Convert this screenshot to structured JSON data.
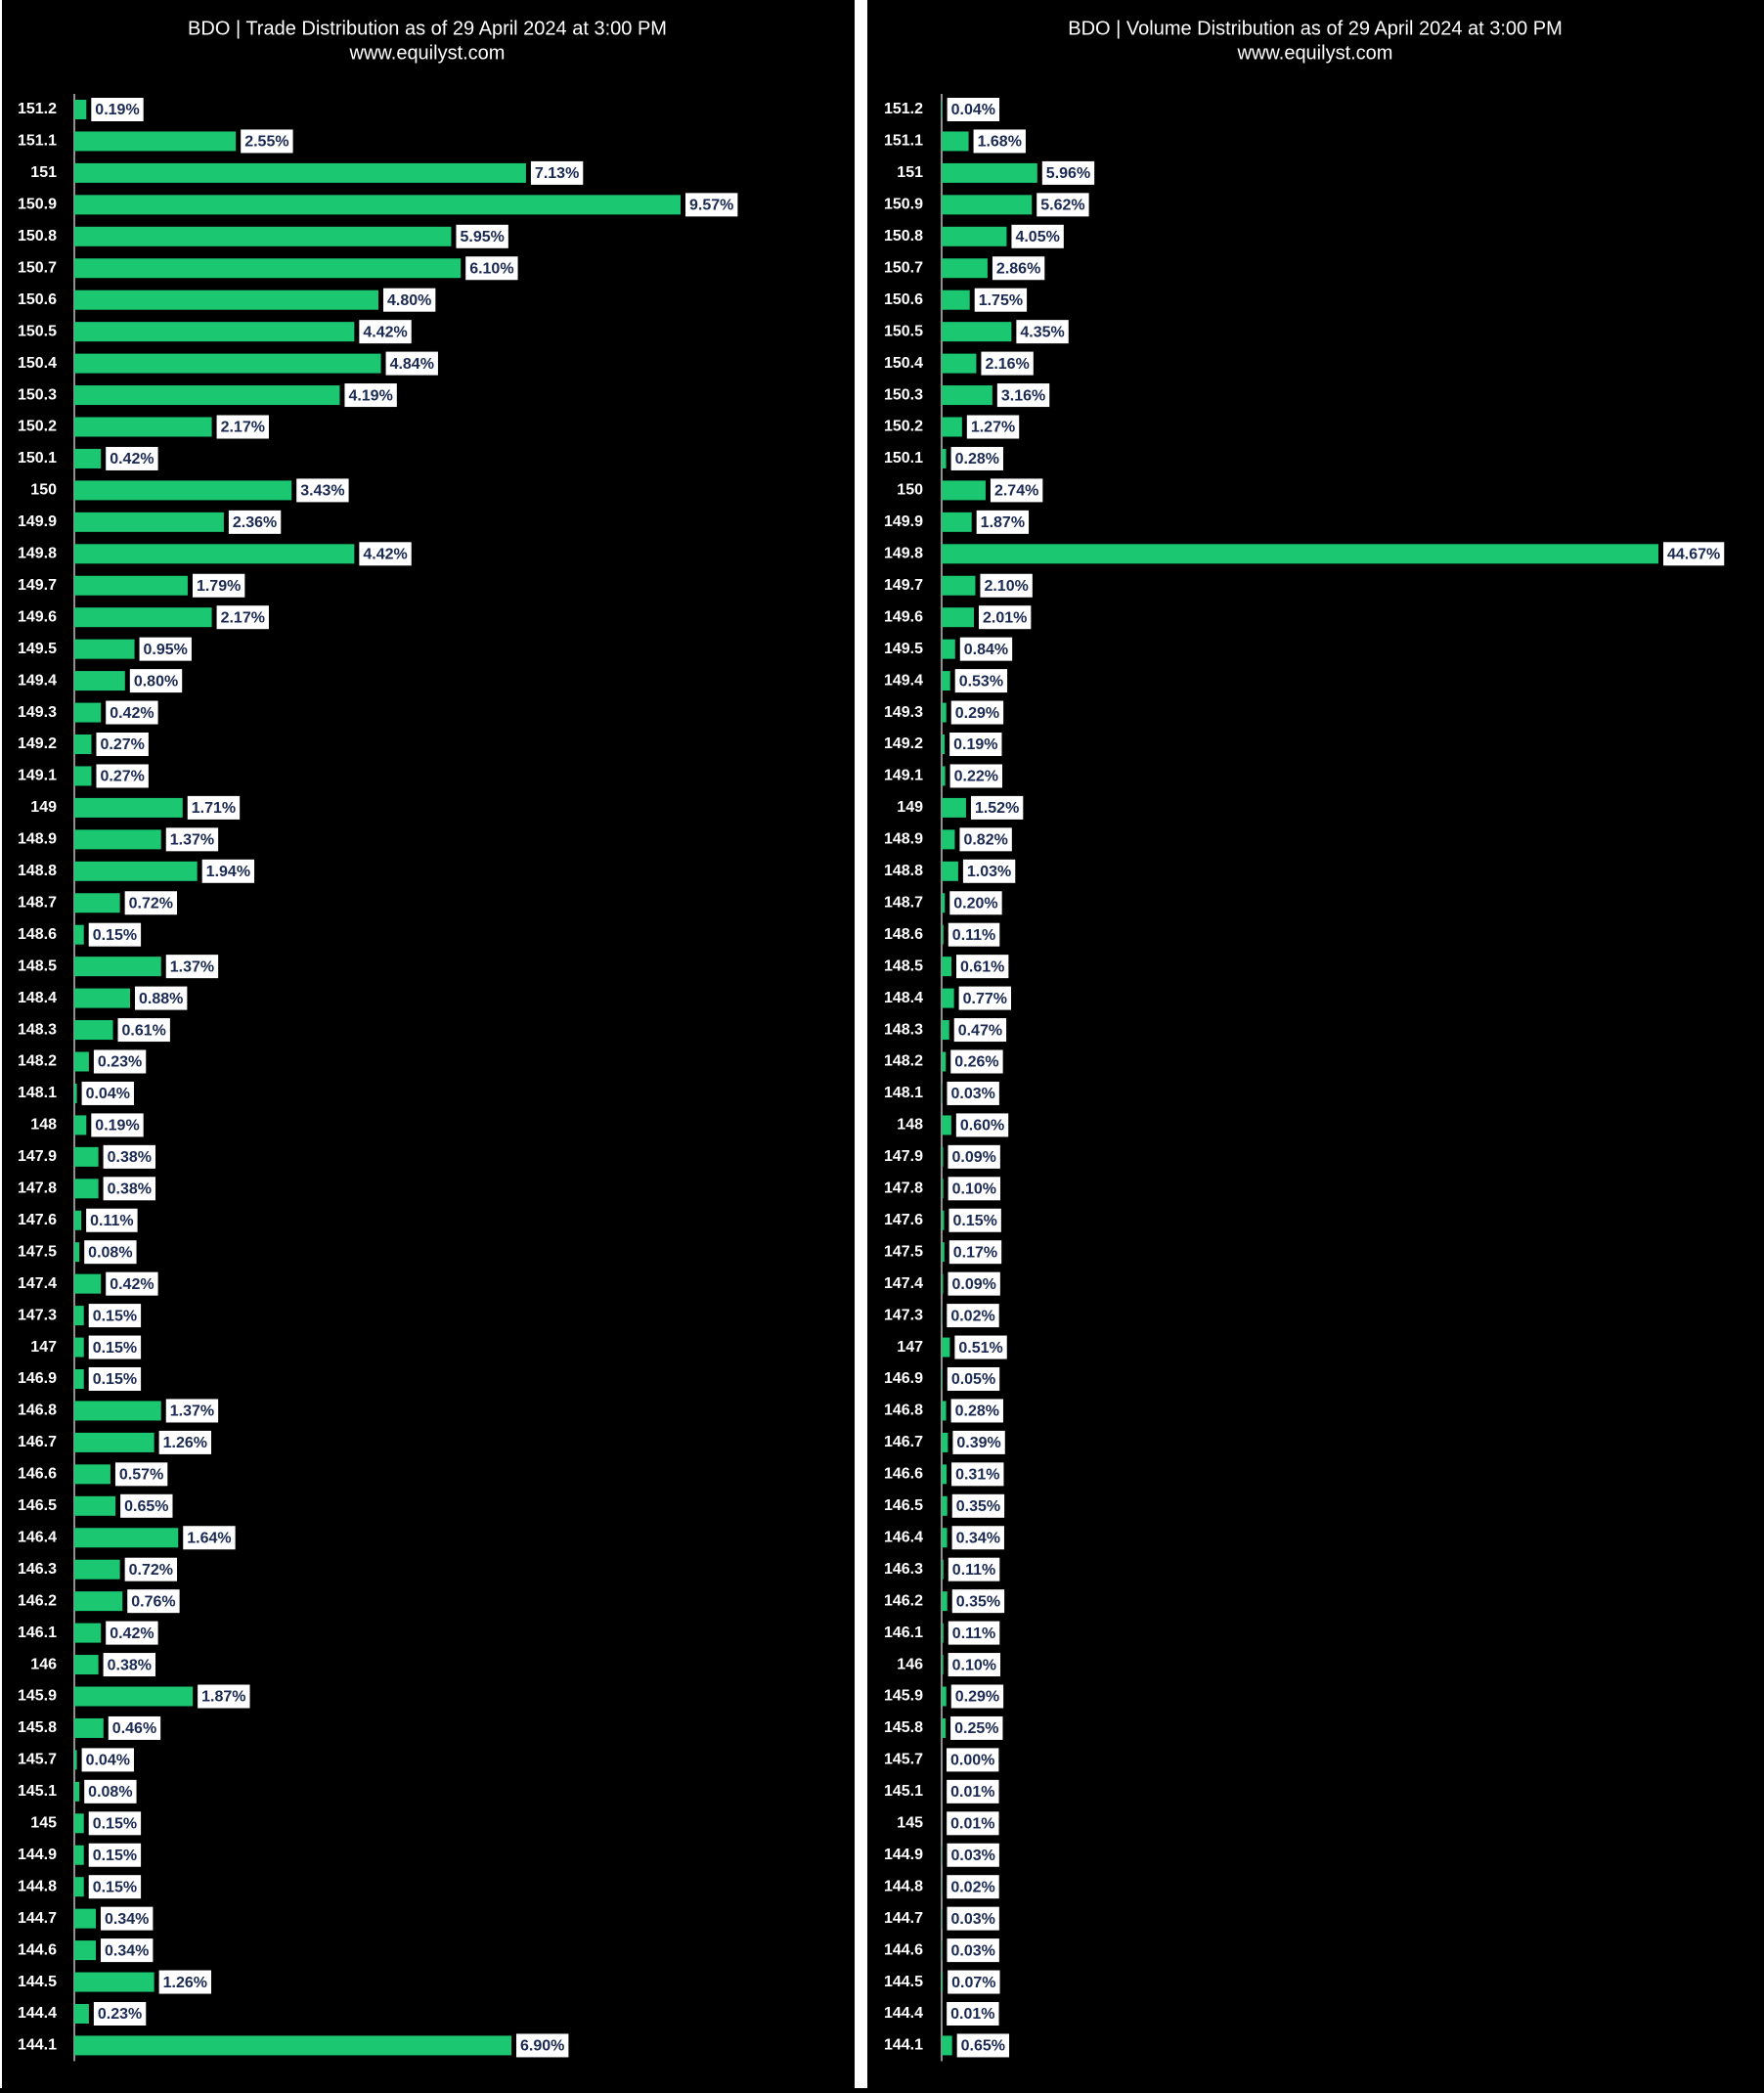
{
  "chart_data": [
    {
      "type": "bar",
      "orientation": "horizontal",
      "title": "BDO | Trade Distribution as of 29 April 2024 at 3:00 PM",
      "subtitle": "www.equilyst.com",
      "color": "#1cc772",
      "categories": [
        "151.2",
        "151.1",
        "151",
        "150.9",
        "150.8",
        "150.7",
        "150.6",
        "150.5",
        "150.4",
        "150.3",
        "150.2",
        "150.1",
        "150",
        "149.9",
        "149.8",
        "149.7",
        "149.6",
        "149.5",
        "149.4",
        "149.3",
        "149.2",
        "149.1",
        "149",
        "148.9",
        "148.8",
        "148.7",
        "148.6",
        "148.5",
        "148.4",
        "148.3",
        "148.2",
        "148.1",
        "148",
        "147.9",
        "147.8",
        "147.6",
        "147.5",
        "147.4",
        "147.3",
        "147",
        "146.9",
        "146.8",
        "146.7",
        "146.6",
        "146.5",
        "146.4",
        "146.3",
        "146.2",
        "146.1",
        "146",
        "145.9",
        "145.8",
        "145.7",
        "145.1",
        "145",
        "144.9",
        "144.8",
        "144.7",
        "144.6",
        "144.5",
        "144.4",
        "144.1"
      ],
      "values": [
        0.19,
        2.55,
        7.13,
        9.57,
        5.95,
        6.1,
        4.8,
        4.42,
        4.84,
        4.19,
        2.17,
        0.42,
        3.43,
        2.36,
        4.42,
        1.79,
        2.17,
        0.95,
        0.8,
        0.42,
        0.27,
        0.27,
        1.71,
        1.37,
        1.94,
        0.72,
        0.15,
        1.37,
        0.88,
        0.61,
        0.23,
        0.04,
        0.19,
        0.38,
        0.38,
        0.11,
        0.08,
        0.42,
        0.15,
        0.15,
        0.15,
        1.37,
        1.26,
        0.57,
        0.65,
        1.64,
        0.72,
        0.76,
        0.42,
        0.38,
        1.87,
        0.46,
        0.04,
        0.08,
        0.15,
        0.15,
        0.15,
        0.34,
        0.34,
        1.26,
        0.23,
        6.9
      ],
      "value_labels": [
        "0.19%",
        "2.55%",
        "7.13%",
        "9.57%",
        "5.95%",
        "6.10%",
        "4.80%",
        "4.42%",
        "4.84%",
        "4.19%",
        "2.17%",
        "0.42%",
        "3.43%",
        "2.36%",
        "4.42%",
        "1.79%",
        "2.17%",
        "0.95%",
        "0.80%",
        "0.42%",
        "0.27%",
        "0.27%",
        "1.71%",
        "1.37%",
        "1.94%",
        "0.72%",
        "0.15%",
        "1.37%",
        "0.88%",
        "0.61%",
        "0.23%",
        "0.04%",
        "0.19%",
        "0.38%",
        "0.38%",
        "0.11%",
        "0.08%",
        "0.42%",
        "0.15%",
        "0.15%",
        "0.15%",
        "1.37%",
        "1.26%",
        "0.57%",
        "0.65%",
        "1.64%",
        "0.72%",
        "0.76%",
        "0.42%",
        "0.38%",
        "1.87%",
        "0.46%",
        "0.04%",
        "0.08%",
        "0.15%",
        "0.15%",
        "0.15%",
        "0.34%",
        "0.34%",
        "1.26%",
        "0.23%",
        "6.90%"
      ]
    },
    {
      "type": "bar",
      "orientation": "horizontal",
      "title": "BDO | Volume Distribution as of 29 April 2024 at 3:00 PM",
      "subtitle": "www.equilyst.com",
      "color": "#1cc772",
      "categories": [
        "151.2",
        "151.1",
        "151",
        "150.9",
        "150.8",
        "150.7",
        "150.6",
        "150.5",
        "150.4",
        "150.3",
        "150.2",
        "150.1",
        "150",
        "149.9",
        "149.8",
        "149.7",
        "149.6",
        "149.5",
        "149.4",
        "149.3",
        "149.2",
        "149.1",
        "149",
        "148.9",
        "148.8",
        "148.7",
        "148.6",
        "148.5",
        "148.4",
        "148.3",
        "148.2",
        "148.1",
        "148",
        "147.9",
        "147.8",
        "147.6",
        "147.5",
        "147.4",
        "147.3",
        "147",
        "146.9",
        "146.8",
        "146.7",
        "146.6",
        "146.5",
        "146.4",
        "146.3",
        "146.2",
        "146.1",
        "146",
        "145.9",
        "145.8",
        "145.7",
        "145.1",
        "145",
        "144.9",
        "144.8",
        "144.7",
        "144.6",
        "144.5",
        "144.4",
        "144.1"
      ],
      "values": [
        0.04,
        1.68,
        5.96,
        5.62,
        4.05,
        2.86,
        1.75,
        4.35,
        2.16,
        3.16,
        1.27,
        0.28,
        2.74,
        1.87,
        44.67,
        2.1,
        2.01,
        0.84,
        0.53,
        0.29,
        0.19,
        0.22,
        1.52,
        0.82,
        1.03,
        0.2,
        0.11,
        0.61,
        0.77,
        0.47,
        0.26,
        0.03,
        0.6,
        0.09,
        0.1,
        0.15,
        0.17,
        0.09,
        0.02,
        0.51,
        0.05,
        0.28,
        0.39,
        0.31,
        0.35,
        0.34,
        0.11,
        0.35,
        0.11,
        0.1,
        0.29,
        0.25,
        0.0,
        0.01,
        0.01,
        0.03,
        0.02,
        0.03,
        0.03,
        0.07,
        0.01,
        0.65
      ],
      "value_labels": [
        "0.04%",
        "1.68%",
        "5.96%",
        "5.62%",
        "4.05%",
        "2.86%",
        "1.75%",
        "4.35%",
        "2.16%",
        "3.16%",
        "1.27%",
        "0.28%",
        "2.74%",
        "1.87%",
        "44.67%",
        "2.10%",
        "2.01%",
        "0.84%",
        "0.53%",
        "0.29%",
        "0.19%",
        "0.22%",
        "1.52%",
        "0.82%",
        "1.03%",
        "0.20%",
        "0.11%",
        "0.61%",
        "0.77%",
        "0.47%",
        "0.26%",
        "0.03%",
        "0.60%",
        "0.09%",
        "0.10%",
        "0.15%",
        "0.17%",
        "0.09%",
        "0.02%",
        "0.51%",
        "0.05%",
        "0.28%",
        "0.39%",
        "0.31%",
        "0.35%",
        "0.34%",
        "0.11%",
        "0.35%",
        "0.11%",
        "0.10%",
        "0.29%",
        "0.25%",
        "0.00%",
        "0.01%",
        "0.01%",
        "0.03%",
        "0.02%",
        "0.03%",
        "0.03%",
        "0.07%",
        "0.01%",
        "0.65%"
      ]
    }
  ]
}
